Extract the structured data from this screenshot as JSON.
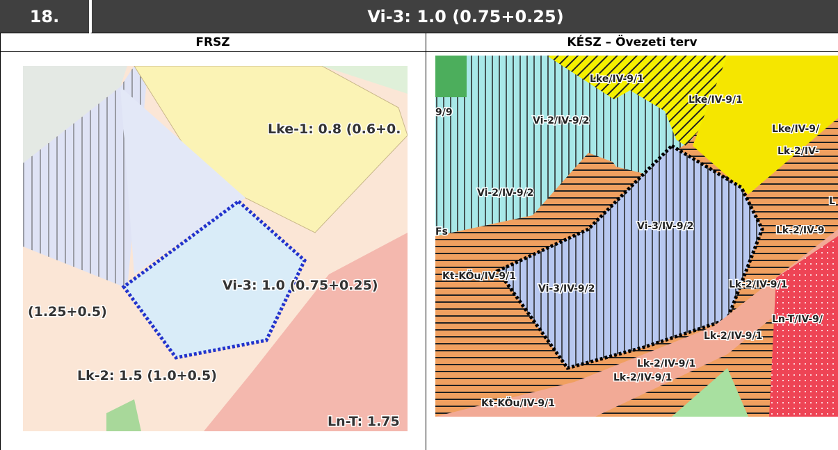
{
  "header": {
    "number": "18.",
    "title": "Vi-3: 1.0 (0.75+0.25)"
  },
  "columns": [
    "FRSZ",
    "KÉSZ – Övezeti terv"
  ],
  "frsz_labels": [
    "Lke-1: 0.8 (0.6+0.",
    "Vi-3: 1.0 (0.75+0.25)",
    "(1.25+0.5)",
    "Lk-2: 1.5 (1.0+0.5)",
    "Ln-T: 1.75"
  ],
  "kesz_labels": [
    "Lke/IV-9/1",
    "Lke/IV-9/1",
    "Lke/IV-9/",
    "Lk-2/IV-",
    "9/9",
    "Vi-2/IV-9/2",
    "Vi-2/IV-9/2",
    "Vi-3/IV-9/2",
    "Lk-2/IV-9",
    "Fs",
    "Kt-KÖu/IV-9/1",
    "Vi-3/IV-9/2",
    "Lk-2/IV-9/1",
    "Ln-T/IV-9/",
    "Lk-2/IV-9/1",
    "Lk-2/IV-9/1",
    "Lk-2/IV-9/1",
    "Kt-KÖu/IV-9/1",
    "L"
  ]
}
